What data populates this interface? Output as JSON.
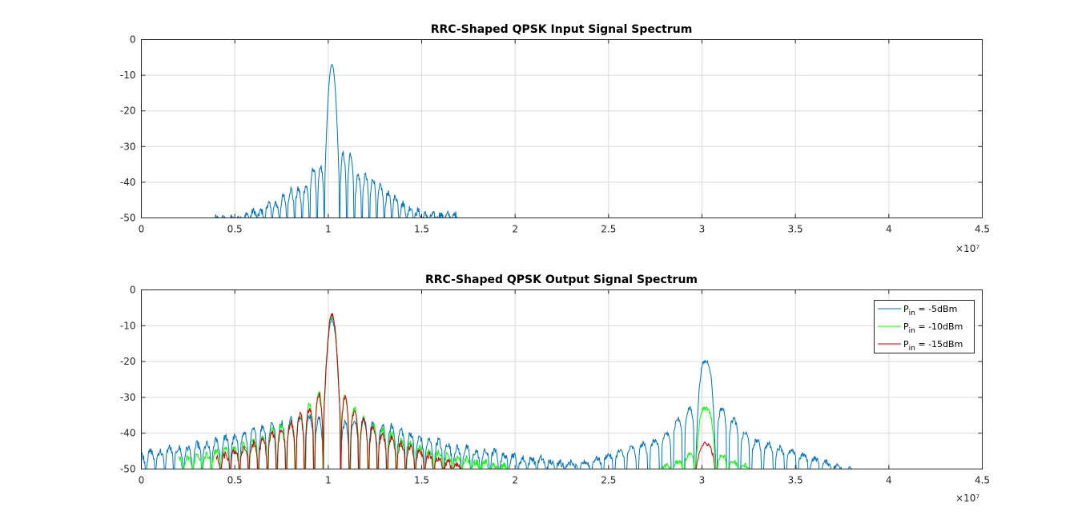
{
  "chart_data": [
    {
      "type": "line",
      "title": "RRC-Shaped QPSK Input Signal Spectrum",
      "xlim": [
        0,
        45000000
      ],
      "ylim": [
        -50,
        0
      ],
      "xticks": [
        0,
        0.5,
        1,
        1.5,
        2,
        2.5,
        3,
        3.5,
        4,
        4.5
      ],
      "xtick_labels": [
        "0",
        "0.5",
        "1",
        "1.5",
        "2",
        "2.5",
        "3",
        "3.5",
        "4",
        "4.5"
      ],
      "yticks": [
        0,
        -10,
        -20,
        -30,
        -40,
        -50
      ],
      "ytick_labels": [
        "0",
        "-10",
        "-20",
        "-30",
        "-40",
        "-50"
      ],
      "x_exponent": "×10⁷",
      "grid": true,
      "series": [
        {
          "color": "#0072bd",
          "center": 10200000,
          "peak": -7,
          "lobe_spacing": 400000,
          "lobe_levels": [
            [
              -36,
              -32
            ],
            [
              -36,
              -32
            ],
            [
              -41,
              -38
            ],
            [
              -42,
              -38
            ],
            [
              -42,
              -39
            ],
            [
              -44,
              -41
            ],
            [
              -46,
              -43
            ],
            [
              -46,
              -44
            ],
            [
              -48,
              -46
            ],
            [
              -48,
              -47
            ],
            [
              -49,
              -48
            ],
            [
              -50,
              -49
            ]
          ],
          "x_range": [
            3900000,
            17000000
          ]
        }
      ]
    },
    {
      "type": "line",
      "title": "RRC-Shaped QPSK Output Signal Spectrum",
      "xlim": [
        0,
        45000000
      ],
      "ylim": [
        -50,
        0
      ],
      "xticks": [
        0,
        0.5,
        1,
        1.5,
        2,
        2.5,
        3,
        3.5,
        4,
        4.5
      ],
      "xtick_labels": [
        "0",
        "0.5",
        "1",
        "1.5",
        "2",
        "2.5",
        "3",
        "3.5",
        "4",
        "4.5"
      ],
      "yticks": [
        0,
        -10,
        -20,
        -30,
        -40,
        -50
      ],
      "ytick_labels": [
        "0",
        "-10",
        "-20",
        "-30",
        "-40",
        "-50"
      ],
      "x_exponent": "×10⁷",
      "grid": true,
      "legend": {
        "location": "top-right",
        "entries": [
          {
            "symbol": "P",
            "sub": "in",
            "rest": " = -5dBm",
            "color": "#0072bd"
          },
          {
            "symbol": "P",
            "sub": "in",
            "rest": " = -10dBm",
            "color": "#00ff00"
          },
          {
            "symbol": "P",
            "sub": "in",
            "rest": " = -15dBm",
            "color": "#cc0000"
          }
        ]
      },
      "series": [
        {
          "name": "Pin = -5dBm",
          "color": "#0072bd",
          "main": {
            "center": 10200000,
            "peak": -8
          },
          "main_lobes": [
            -37,
            -36,
            -36,
            -37,
            -38,
            -38,
            -39,
            -40,
            -41,
            -42,
            -42,
            -43,
            -44,
            -44,
            -45,
            -45,
            -45,
            -46,
            -46,
            -47,
            -47,
            -47,
            -48,
            -48,
            -48
          ],
          "third": {
            "center": 30200000,
            "peak": -20
          },
          "third_lobes": [
            -33,
            -36,
            -40,
            -42,
            -43,
            -44,
            -45,
            -46,
            -47,
            -48,
            -49,
            -50
          ],
          "x_range": [
            0,
            42000000
          ]
        },
        {
          "name": "Pin = -10dBm",
          "color": "#00ff00",
          "main": {
            "center": 10200000,
            "peak": -7
          },
          "main_lobes": [
            -30,
            -33,
            -36,
            -38,
            -39,
            -40,
            -42,
            -43,
            -44,
            -45,
            -45,
            -46,
            -47,
            -47,
            -48,
            -48,
            -49,
            -49
          ],
          "third": {
            "center": 30200000,
            "peak": -33
          },
          "third_lobes": [
            -46,
            -48,
            -49
          ],
          "x_range": [
            2000000,
            33000000
          ]
        },
        {
          "name": "Pin = -15dBm",
          "color": "#cc0000",
          "main": {
            "center": 10200000,
            "peak": -7
          },
          "main_lobes": [
            -30,
            -34,
            -36,
            -38,
            -40,
            -41,
            -43,
            -44,
            -45,
            -46,
            -47,
            -48,
            -49
          ],
          "third": {
            "center": 30200000,
            "peak": -43
          },
          "third_lobes": [],
          "x_range": [
            4000000,
            31000000
          ]
        }
      ]
    }
  ]
}
